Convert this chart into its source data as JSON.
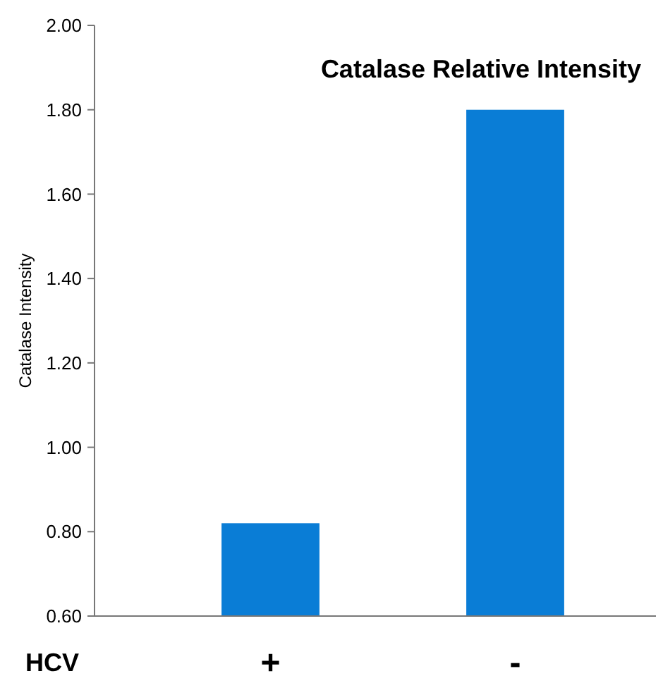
{
  "chart_data": {
    "type": "bar",
    "title": "Catalase Relative Intensity",
    "xlabel": "HCV",
    "ylabel": "Catalase Intensity",
    "categories": [
      "+",
      "-"
    ],
    "values": [
      0.82,
      1.8
    ],
    "color": "#0a7dd6",
    "ylim": [
      0.6,
      2.0
    ],
    "yticks": [
      {
        "value": 0.6,
        "label": "0.60"
      },
      {
        "value": 0.8,
        "label": "0.80"
      },
      {
        "value": 1.0,
        "label": "1.00"
      },
      {
        "value": 1.2,
        "label": "1.20"
      },
      {
        "value": 1.4,
        "label": "1.40"
      },
      {
        "value": 1.6,
        "label": "1.60"
      },
      {
        "value": 1.8,
        "label": "1.80"
      },
      {
        "value": 2.0,
        "label": "2.00"
      }
    ],
    "grid": false
  }
}
